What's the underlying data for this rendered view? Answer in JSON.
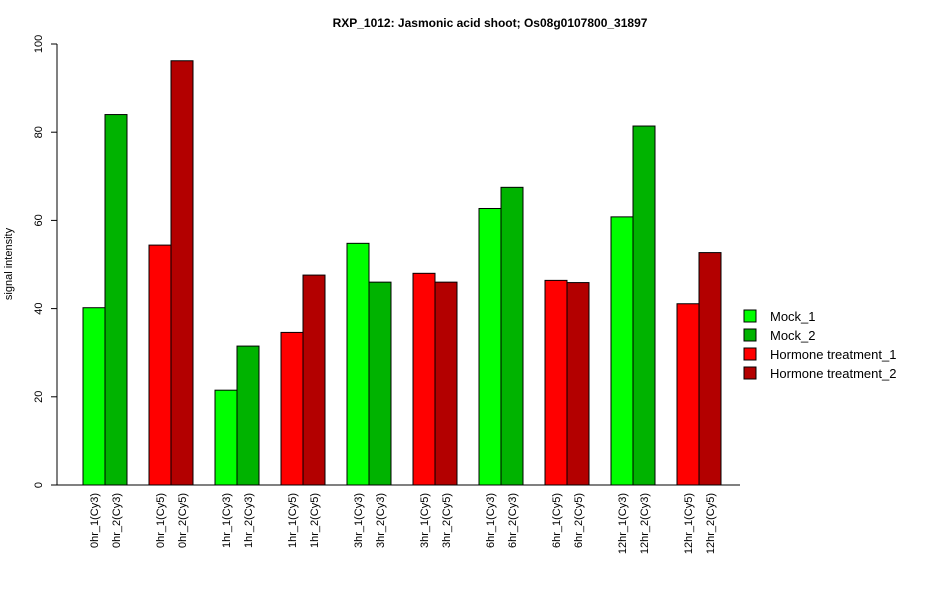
{
  "chart_data": {
    "type": "bar",
    "title": "RXP_1012: Jasmonic acid shoot; Os08g0107800_31897",
    "xlabel": "",
    "ylabel": "signal intensity",
    "ylim": [
      0,
      100
    ],
    "yticks": [
      0,
      20,
      40,
      60,
      80,
      100
    ],
    "grid": false,
    "legend_position": "right",
    "series": [
      {
        "name": "Mock_1",
        "color": "#00ff00"
      },
      {
        "name": "Mock_2",
        "color": "#00b300"
      },
      {
        "name": "Hormone treatment_1",
        "color": "#ff0000"
      },
      {
        "name": "Hormone treatment_2",
        "color": "#b30000"
      }
    ],
    "bars": [
      {
        "label": "0hr_1(Cy3)",
        "value": 40.2,
        "series": 0
      },
      {
        "label": "0hr_2(Cy3)",
        "value": 84.0,
        "series": 1
      },
      {
        "label": "0hr_1(Cy5)",
        "value": 54.4,
        "series": 2
      },
      {
        "label": "0hr_2(Cy5)",
        "value": 96.2,
        "series": 3
      },
      {
        "label": "1hr_1(Cy3)",
        "value": 21.5,
        "series": 0
      },
      {
        "label": "1hr_2(Cy3)",
        "value": 31.5,
        "series": 1
      },
      {
        "label": "1hr_1(Cy5)",
        "value": 34.6,
        "series": 2
      },
      {
        "label": "1hr_2(Cy5)",
        "value": 47.6,
        "series": 3
      },
      {
        "label": "3hr_1(Cy3)",
        "value": 54.8,
        "series": 0
      },
      {
        "label": "3hr_2(Cy3)",
        "value": 46.0,
        "series": 1
      },
      {
        "label": "3hr_1(Cy5)",
        "value": 48.0,
        "series": 2
      },
      {
        "label": "3hr_2(Cy5)",
        "value": 46.0,
        "series": 3
      },
      {
        "label": "6hr_1(Cy3)",
        "value": 62.7,
        "series": 0
      },
      {
        "label": "6hr_2(Cy3)",
        "value": 67.5,
        "series": 1
      },
      {
        "label": "6hr_1(Cy5)",
        "value": 46.4,
        "series": 2
      },
      {
        "label": "6hr_2(Cy5)",
        "value": 45.9,
        "series": 3
      },
      {
        "label": "12hr_1(Cy3)",
        "value": 60.8,
        "series": 0
      },
      {
        "label": "12hr_2(Cy3)",
        "value": 81.4,
        "series": 1
      },
      {
        "label": "12hr_1(Cy5)",
        "value": 41.1,
        "series": 2
      },
      {
        "label": "12hr_2(Cy5)",
        "value": 52.7,
        "series": 3
      }
    ]
  }
}
